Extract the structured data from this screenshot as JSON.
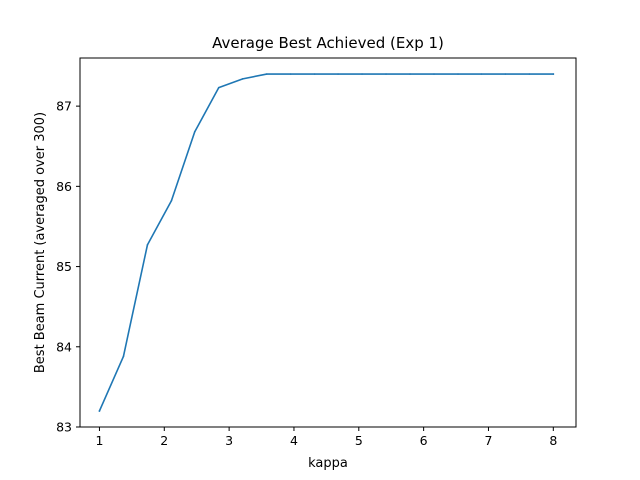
{
  "chart_data": {
    "type": "line",
    "title": "Average Best Achieved (Exp 1)",
    "xlabel": "kappa",
    "ylabel": "Best Beam Current (averaged over 300)",
    "xlim": [
      0.7,
      8.35
    ],
    "ylim": [
      83.0,
      87.6
    ],
    "xticks": [
      1,
      2,
      3,
      4,
      5,
      6,
      7,
      8
    ],
    "yticks": [
      83,
      84,
      85,
      86,
      87
    ],
    "grid": false,
    "legend": "none",
    "series": [
      {
        "color": "#1f77b4",
        "x": [
          1.0,
          1.37,
          1.74,
          2.11,
          2.47,
          2.84,
          3.21,
          3.58,
          3.95,
          4.32,
          4.68,
          5.05,
          5.42,
          5.79,
          6.16,
          6.53,
          6.89,
          7.26,
          7.63,
          8.0
        ],
        "y": [
          83.2,
          83.88,
          85.27,
          85.82,
          86.68,
          87.23,
          87.34,
          87.4,
          87.4,
          87.4,
          87.4,
          87.4,
          87.4,
          87.4,
          87.4,
          87.4,
          87.4,
          87.4,
          87.4,
          87.4
        ]
      }
    ]
  }
}
